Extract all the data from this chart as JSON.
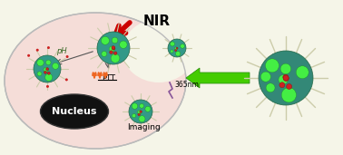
{
  "bg_color": "#f5f5e8",
  "cell_bg": "#f5ddd8",
  "cell_outline": "#cccccc",
  "nucleus_color": "#111111",
  "nucleus_text": "Nucleus",
  "nir_text": "NIR",
  "ptt_text": "PTT",
  "ph_text": "pH",
  "imaging_text": "Imaging",
  "nm_text": "365nm",
  "arrow_red": "#cc0000",
  "arrow_green": "#44cc00",
  "nanoparticle_base": "#33aa55",
  "nanoparticle_teal": "#339988",
  "dot_green": "#44ee44",
  "dot_red": "#cc2222",
  "dot_dark": "#114422",
  "spike_color": "#ccccaa",
  "heat_color": "#ee6622",
  "figsize": [
    3.78,
    1.71
  ],
  "dpi": 100
}
